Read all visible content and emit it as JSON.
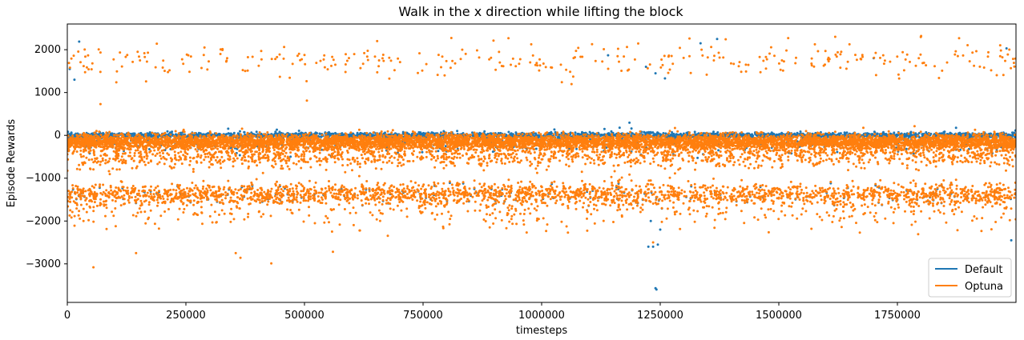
{
  "chart_data": {
    "type": "scatter",
    "title": "Walk in the x direction while lifting the block",
    "xlabel": "timesteps",
    "ylabel": "Episode Rewards",
    "xlim": [
      0,
      2000000
    ],
    "ylim": [
      -3900,
      2600
    ],
    "x_ticks": [
      0,
      250000,
      500000,
      750000,
      1000000,
      1250000,
      1500000,
      1750000
    ],
    "y_ticks": [
      -3000,
      -2000,
      -1000,
      0,
      1000,
      2000
    ],
    "legend_position": "lower-right",
    "grid": false,
    "series": [
      {
        "name": "Default",
        "color": "#1f77b4",
        "bands": [
          {
            "x_start": 0,
            "x_end": 2000000,
            "y_center": 0,
            "y_spread": 60,
            "count": 2600
          },
          {
            "x_start": 0,
            "x_end": 2000000,
            "y_center": -150,
            "y_spread": 250,
            "count": 500
          },
          {
            "x_start": 0,
            "x_end": 2000000,
            "y_center": -1400,
            "y_spread": 250,
            "count": 200
          }
        ],
        "points": [
          {
            "x": 5000,
            "y": 1550
          },
          {
            "x": 15000,
            "y": 1300
          },
          {
            "x": 25000,
            "y": 2190
          },
          {
            "x": 1140000,
            "y": 1870
          },
          {
            "x": 1220000,
            "y": 1600
          },
          {
            "x": 1240000,
            "y": 1450
          },
          {
            "x": 1260000,
            "y": 1330
          },
          {
            "x": 1335000,
            "y": 2150
          },
          {
            "x": 1370000,
            "y": 2250
          },
          {
            "x": 1700000,
            "y": 1800
          },
          {
            "x": 1980000,
            "y": 2030
          },
          {
            "x": 1225000,
            "y": -2600
          },
          {
            "x": 1235000,
            "y": -2600
          },
          {
            "x": 1245000,
            "y": -2550
          },
          {
            "x": 1240000,
            "y": -3570
          },
          {
            "x": 1242000,
            "y": -3600
          },
          {
            "x": 1990000,
            "y": -2450
          },
          {
            "x": 1230000,
            "y": -2000
          },
          {
            "x": 1250000,
            "y": -2200
          }
        ]
      },
      {
        "name": "Optuna",
        "color": "#ff7f0e",
        "bands": [
          {
            "x_start": 0,
            "x_end": 2000000,
            "y_center": -150,
            "y_spread": 170,
            "count": 7000
          },
          {
            "x_start": 0,
            "x_end": 2000000,
            "y_center": -450,
            "y_spread": 300,
            "count": 1800
          },
          {
            "x_start": 0,
            "x_end": 2000000,
            "y_center": -1380,
            "y_spread": 260,
            "count": 2400
          },
          {
            "x_start": 0,
            "x_end": 2000000,
            "y_center": -1800,
            "y_spread": 400,
            "count": 400
          },
          {
            "x_start": 0,
            "x_end": 2000000,
            "y_center": 1750,
            "y_spread": 400,
            "count": 330
          }
        ],
        "points": [
          {
            "x": 55000,
            "y": -3080
          },
          {
            "x": 145000,
            "y": -2750
          },
          {
            "x": 355000,
            "y": -2750
          },
          {
            "x": 365000,
            "y": -2860
          },
          {
            "x": 430000,
            "y": -2990
          },
          {
            "x": 560000,
            "y": -2720
          },
          {
            "x": 1235000,
            "y": -2500
          },
          {
            "x": 505000,
            "y": 810
          },
          {
            "x": 70000,
            "y": 730
          },
          {
            "x": 1800000,
            "y": 2320
          },
          {
            "x": 1880000,
            "y": 2270
          },
          {
            "x": 930000,
            "y": 2270
          }
        ]
      }
    ]
  }
}
